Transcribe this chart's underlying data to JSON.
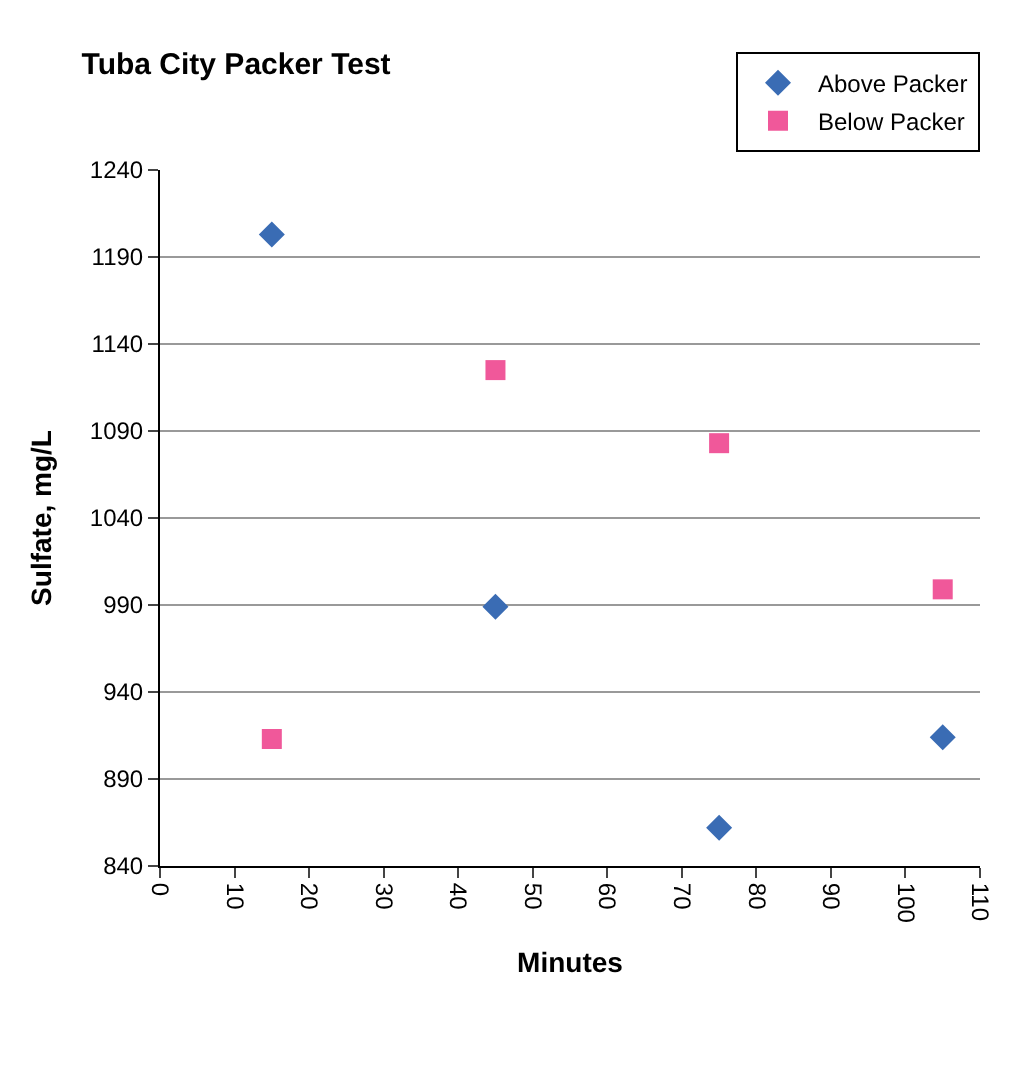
{
  "chart_data": {
    "type": "scatter",
    "title": "Tuba City Packer Test",
    "xlabel": "Minutes",
    "ylabel": "Sulfate, mg/L",
    "series": [
      {
        "name": "Above Packer",
        "color": "#3a6cb4",
        "marker": "diamond",
        "x": [
          15,
          45,
          75,
          105
        ],
        "values": [
          1203,
          989,
          862,
          914
        ]
      },
      {
        "name": "Below Packer",
        "color": "#f0589a",
        "marker": "square",
        "x": [
          15,
          45,
          75,
          105
        ],
        "values": [
          913,
          1125,
          1083,
          999
        ]
      }
    ],
    "xlim": [
      0,
      110
    ],
    "xticks": [
      0,
      10,
      20,
      30,
      40,
      50,
      60,
      70,
      80,
      90,
      100,
      110
    ],
    "ylim": [
      840,
      1240
    ],
    "yticks": [
      840,
      890,
      940,
      990,
      1040,
      1090,
      1140,
      1190,
      1240
    ],
    "grid": "y",
    "legend": "top right"
  }
}
